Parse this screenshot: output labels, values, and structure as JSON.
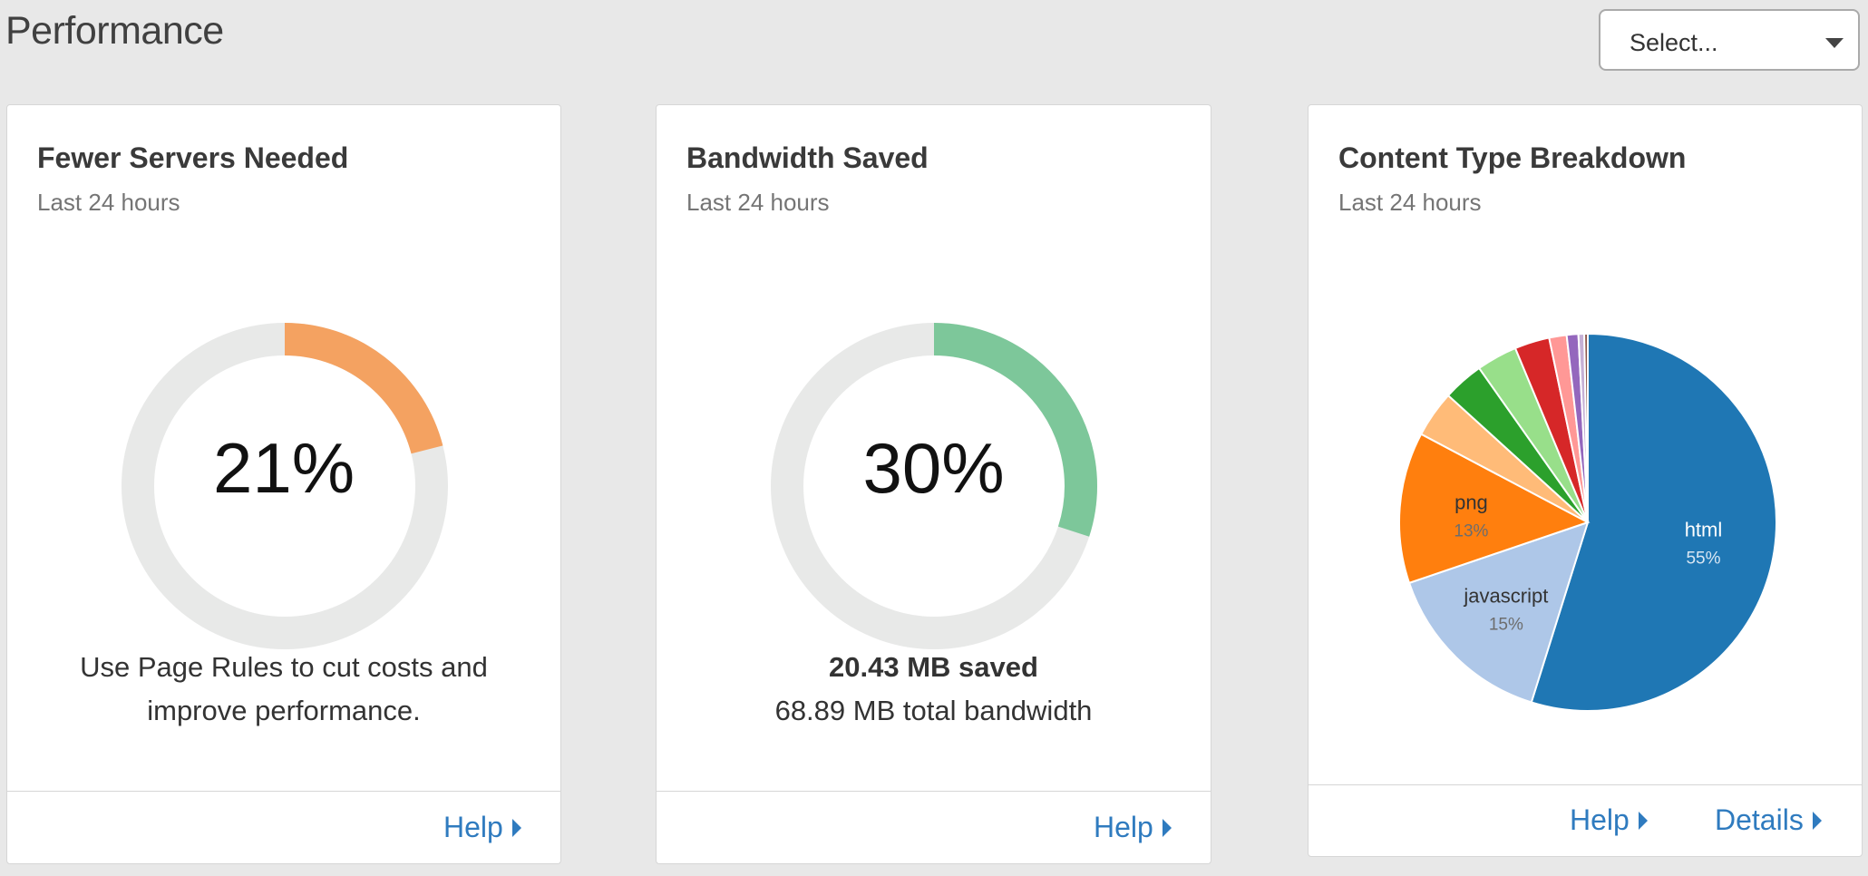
{
  "page": {
    "title": "Performance"
  },
  "selector": {
    "value": "Select..."
  },
  "cards": {
    "servers": {
      "title": "Fewer Servers Needed",
      "subtitle": "Last 24 hours",
      "value_text": "21%",
      "percent": 21,
      "accent": "#f4a261",
      "message": [
        "Use Page Rules to cut costs and",
        "improve performance."
      ],
      "help_label": "Help"
    },
    "bandwidth": {
      "title": "Bandwidth Saved",
      "subtitle": "Last 24 hours",
      "value_text": "30%",
      "percent": 30,
      "accent": "#7dc79a",
      "saved": "20.43 MB saved",
      "total": "68.89 MB total bandwidth",
      "help_label": "Help"
    },
    "content": {
      "title": "Content Type Breakdown",
      "subtitle": "Last 24 hours",
      "help_label": "Help",
      "details_label": "Details"
    }
  },
  "colors": {
    "track": "#e8e9e8",
    "link": "#2f7bbf"
  },
  "chart_data": {
    "type": "pie",
    "slices": [
      {
        "label": "html",
        "value": 55,
        "percent_text": "55%",
        "color": "#1f77b4"
      },
      {
        "label": "javascript",
        "value": 15,
        "percent_text": "15%",
        "color": "#aec7e8"
      },
      {
        "label": "png",
        "value": 13,
        "percent_text": "13%",
        "color": "#ff7f0e"
      },
      {
        "label": "",
        "value": 4,
        "color": "#ffbb78"
      },
      {
        "label": "",
        "value": 3.5,
        "color": "#2ca02c"
      },
      {
        "label": "",
        "value": 3.5,
        "color": "#98df8a"
      },
      {
        "label": "",
        "value": 3,
        "color": "#d62728"
      },
      {
        "label": "",
        "value": 1.5,
        "color": "#ff9896"
      },
      {
        "label": "",
        "value": 1,
        "color": "#9467bd"
      },
      {
        "label": "",
        "value": 0.5,
        "color": "#c5b0d5"
      },
      {
        "label": "",
        "value": 0.3,
        "color": "#8c564b"
      }
    ]
  }
}
